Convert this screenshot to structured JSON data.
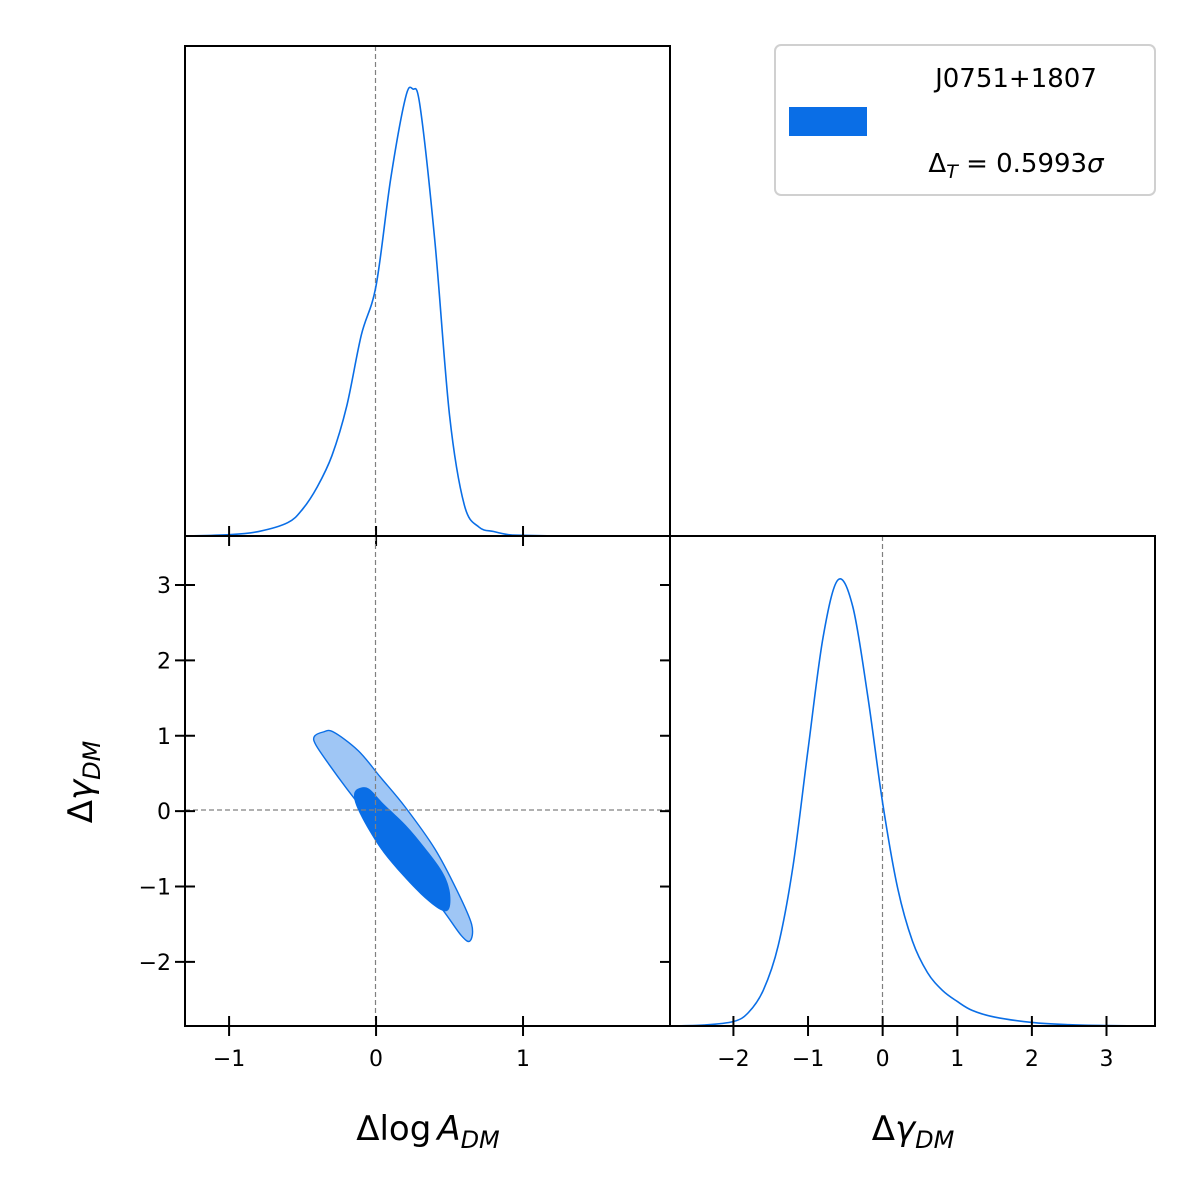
{
  "chart_data": [
    {
      "type": "line",
      "panel": "marginal-logA",
      "x_tick_labels": [
        "−1",
        "0",
        "1"
      ],
      "x_ticks": [
        -1,
        0,
        1
      ],
      "xlim": [
        -1.3,
        2.0
      ],
      "reference_x": 0,
      "series": [
        {
          "x": [
            -1.3,
            -1.0,
            -0.8,
            -0.6,
            -0.5,
            -0.4,
            -0.3,
            -0.2,
            -0.1,
            0.0,
            0.1,
            0.2,
            0.25,
            0.3,
            0.4,
            0.5,
            0.6,
            0.7,
            0.8,
            0.9,
            1.0,
            1.3,
            2.0
          ],
          "y": [
            0.0,
            0.003,
            0.01,
            0.03,
            0.06,
            0.11,
            0.18,
            0.29,
            0.45,
            0.56,
            0.8,
            0.98,
            1.0,
            0.96,
            0.66,
            0.27,
            0.07,
            0.02,
            0.01,
            0.003,
            0.0015,
            0.0,
            0.0
          ]
        }
      ]
    },
    {
      "type": "line",
      "panel": "marginal-gamma",
      "x_tick_labels": [
        "−2",
        "−1",
        "0",
        "1",
        "2",
        "3"
      ],
      "x_ticks": [
        -2,
        -1,
        0,
        1,
        2,
        3
      ],
      "xlim": [
        -2.85,
        3.65
      ],
      "reference_x": 0,
      "series": [
        {
          "x": [
            -2.85,
            -2.4,
            -2.0,
            -1.8,
            -1.6,
            -1.4,
            -1.2,
            -1.0,
            -0.8,
            -0.6,
            -0.4,
            -0.2,
            0.0,
            0.2,
            0.4,
            0.6,
            0.8,
            1.0,
            1.2,
            1.5,
            2.0,
            2.5,
            3.0,
            3.65
          ],
          "y": [
            0.0,
            0.002,
            0.01,
            0.03,
            0.08,
            0.18,
            0.36,
            0.62,
            0.87,
            1.0,
            0.94,
            0.74,
            0.5,
            0.31,
            0.19,
            0.12,
            0.08,
            0.055,
            0.035,
            0.02,
            0.008,
            0.003,
            0.001,
            0.0
          ]
        }
      ]
    },
    {
      "type": "contour",
      "panel": "joint",
      "xlabel": "Δlog A_DM",
      "ylabel": "Δγ_DM",
      "x_tick_labels": [
        "−1",
        "0",
        "1"
      ],
      "x_ticks": [
        -1,
        0,
        1
      ],
      "y_tick_labels": [
        "3",
        "2",
        "1",
        "0",
        "−1",
        "−2"
      ],
      "y_ticks": [
        3,
        2,
        1,
        0,
        -1,
        -2
      ],
      "xlim": [
        -1.3,
        2.0
      ],
      "ylim": [
        -2.85,
        3.65
      ],
      "reference_x": 0,
      "reference_y": 0,
      "contours": [
        {
          "level": "95%",
          "color": "#9fc6f5",
          "x": [
            -0.36,
            -0.29,
            -0.12,
            0.03,
            0.2,
            0.4,
            0.55,
            0.65,
            0.64,
            0.58,
            0.45,
            0.28,
            0.1,
            -0.06,
            -0.2,
            -0.32,
            -0.41,
            -0.42
          ],
          "y": [
            1.05,
            1.05,
            0.8,
            0.45,
            0.05,
            -0.5,
            -1.05,
            -1.5,
            -1.72,
            -1.65,
            -1.3,
            -0.9,
            -0.45,
            -0.05,
            0.3,
            0.62,
            0.88,
            0.99
          ]
        },
        {
          "level": "68%",
          "color": "#0a6ee6",
          "x": [
            -0.12,
            -0.05,
            0.05,
            0.2,
            0.33,
            0.45,
            0.5,
            0.5,
            0.45,
            0.33,
            0.18,
            0.05,
            -0.05,
            -0.13,
            -0.15
          ],
          "y": [
            0.3,
            0.3,
            0.1,
            -0.18,
            -0.48,
            -0.8,
            -1.05,
            -1.28,
            -1.32,
            -1.15,
            -0.85,
            -0.55,
            -0.25,
            0.05,
            0.22
          ]
        }
      ]
    }
  ],
  "x_axis_labels": {
    "logA": {
      "main": "Δlog",
      "var": "A",
      "sub": "DM"
    },
    "gamma": {
      "main": "Δ",
      "var": "γ",
      "sub": "DM"
    }
  },
  "y_axis_label": {
    "main": "Δ",
    "var": "γ",
    "sub": "DM"
  },
  "legend": {
    "title": "J0751+1807",
    "stat_prefix": "Δ",
    "stat_sub": "T",
    "stat_value": " = 0.5993",
    "stat_sigma": "σ",
    "swatch_color": "#0a6ee6"
  },
  "colors": {
    "line": "#0a6ee6",
    "contour_inner": "#0a6ee6",
    "contour_outer": "#9fc6f5",
    "reference": "#808080"
  }
}
